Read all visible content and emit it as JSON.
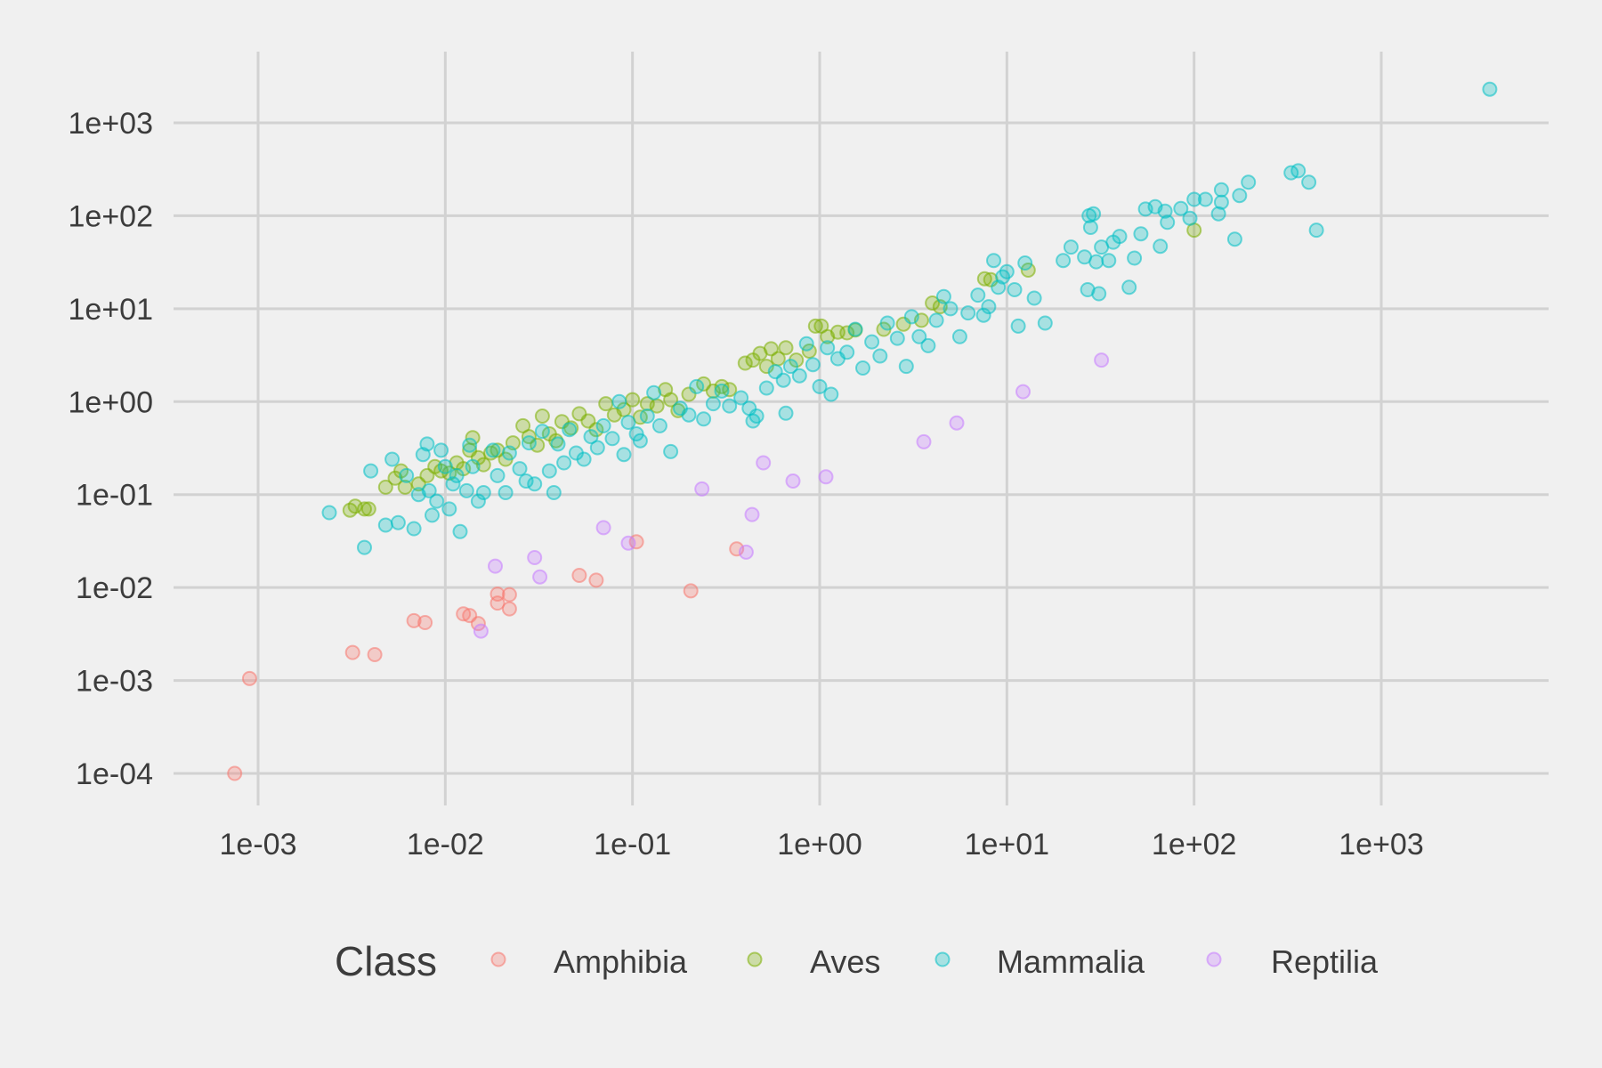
{
  "chart_data": {
    "type": "scatter",
    "title": "",
    "xlabel": "",
    "ylabel": "",
    "x_scale": "log10",
    "y_scale": "log10",
    "xlim": [
      0.0005,
      7000
    ],
    "ylim": [
      5e-05,
      5000
    ],
    "x_ticks": [
      0.001,
      0.01,
      0.1,
      1,
      10,
      100,
      1000
    ],
    "x_tick_labels": [
      "1e-03",
      "1e-02",
      "1e-01",
      "1e+00",
      "1e+01",
      "1e+02",
      "1e+03"
    ],
    "y_ticks": [
      0.0001,
      0.001,
      0.01,
      0.1,
      1,
      10,
      100,
      1000
    ],
    "y_tick_labels": [
      "1e-04",
      "1e-03",
      "1e-02",
      "1e-01",
      "1e+00",
      "1e+01",
      "1e+02",
      "1e+03"
    ],
    "grid": true,
    "point_opacity": 0.3,
    "legend": {
      "title": "Class",
      "position": "bottom",
      "entries": [
        "Amphibia",
        "Aves",
        "Mammalia",
        "Reptilia"
      ]
    },
    "series": [
      {
        "name": "Amphibia",
        "color": "#F8766D",
        "points": [
          [
            0.00075,
            0.0001
          ],
          [
            0.0009,
            0.00105
          ],
          [
            0.0032,
            0.002
          ],
          [
            0.0042,
            0.0019
          ],
          [
            0.0068,
            0.0044
          ],
          [
            0.0078,
            0.0042
          ],
          [
            0.0125,
            0.0052
          ],
          [
            0.0135,
            0.005
          ],
          [
            0.015,
            0.0041
          ],
          [
            0.019,
            0.0085
          ],
          [
            0.019,
            0.0068
          ],
          [
            0.022,
            0.0084
          ],
          [
            0.022,
            0.0059
          ],
          [
            0.052,
            0.0135
          ],
          [
            0.064,
            0.012
          ],
          [
            0.105,
            0.031
          ],
          [
            0.205,
            0.0092
          ],
          [
            0.36,
            0.026
          ]
        ]
      },
      {
        "name": "Aves",
        "color": "#7CAE00",
        "points": [
          [
            0.0031,
            0.068
          ],
          [
            0.0033,
            0.075
          ],
          [
            0.0037,
            0.07
          ],
          [
            0.0039,
            0.07
          ],
          [
            0.0048,
            0.12
          ],
          [
            0.0054,
            0.15
          ],
          [
            0.0058,
            0.18
          ],
          [
            0.0061,
            0.12
          ],
          [
            0.0072,
            0.13
          ],
          [
            0.008,
            0.16
          ],
          [
            0.0088,
            0.2
          ],
          [
            0.0095,
            0.18
          ],
          [
            0.0105,
            0.17
          ],
          [
            0.0115,
            0.22
          ],
          [
            0.0125,
            0.19
          ],
          [
            0.0135,
            0.3
          ],
          [
            0.014,
            0.41
          ],
          [
            0.015,
            0.25
          ],
          [
            0.016,
            0.21
          ],
          [
            0.0175,
            0.28
          ],
          [
            0.019,
            0.3
          ],
          [
            0.021,
            0.24
          ],
          [
            0.023,
            0.36
          ],
          [
            0.026,
            0.55
          ],
          [
            0.028,
            0.42
          ],
          [
            0.031,
            0.34
          ],
          [
            0.033,
            0.7
          ],
          [
            0.036,
            0.45
          ],
          [
            0.039,
            0.38
          ],
          [
            0.042,
            0.61
          ],
          [
            0.047,
            0.52
          ],
          [
            0.052,
            0.74
          ],
          [
            0.058,
            0.62
          ],
          [
            0.064,
            0.5
          ],
          [
            0.072,
            0.95
          ],
          [
            0.08,
            0.72
          ],
          [
            0.09,
            0.82
          ],
          [
            0.1,
            1.05
          ],
          [
            0.11,
            0.68
          ],
          [
            0.12,
            0.95
          ],
          [
            0.135,
            0.9
          ],
          [
            0.15,
            1.35
          ],
          [
            0.16,
            1.05
          ],
          [
            0.175,
            0.8
          ],
          [
            0.2,
            1.2
          ],
          [
            0.24,
            1.55
          ],
          [
            0.27,
            1.3
          ],
          [
            0.3,
            1.45
          ],
          [
            0.33,
            1.35
          ],
          [
            0.4,
            2.6
          ],
          [
            0.44,
            2.8
          ],
          [
            0.48,
            3.3
          ],
          [
            0.52,
            2.4
          ],
          [
            0.55,
            3.7
          ],
          [
            0.6,
            2.9
          ],
          [
            0.66,
            3.8
          ],
          [
            0.75,
            2.8
          ],
          [
            0.88,
            3.5
          ],
          [
            0.95,
            6.5
          ],
          [
            1.02,
            6.5
          ],
          [
            1.1,
            5.0
          ],
          [
            1.25,
            5.6
          ],
          [
            1.4,
            5.5
          ],
          [
            1.55,
            5.9
          ],
          [
            2.2,
            6.0
          ],
          [
            2.8,
            6.8
          ],
          [
            3.5,
            7.5
          ],
          [
            4.0,
            11.5
          ],
          [
            4.4,
            10.5
          ],
          [
            7.6,
            21.0
          ],
          [
            8.2,
            20.5
          ],
          [
            13.0,
            26.0
          ],
          [
            100.0,
            70.0
          ]
        ]
      },
      {
        "name": "Mammalia",
        "color": "#00BFC4",
        "points": [
          [
            0.0024,
            0.064
          ],
          [
            0.0037,
            0.027
          ],
          [
            0.004,
            0.18
          ],
          [
            0.0048,
            0.047
          ],
          [
            0.0052,
            0.24
          ],
          [
            0.0056,
            0.05
          ],
          [
            0.0062,
            0.16
          ],
          [
            0.0068,
            0.043
          ],
          [
            0.0072,
            0.1
          ],
          [
            0.0076,
            0.27
          ],
          [
            0.008,
            0.35
          ],
          [
            0.0082,
            0.11
          ],
          [
            0.0085,
            0.06
          ],
          [
            0.009,
            0.085
          ],
          [
            0.0095,
            0.3
          ],
          [
            0.01,
            0.2
          ],
          [
            0.0105,
            0.07
          ],
          [
            0.011,
            0.13
          ],
          [
            0.0115,
            0.16
          ],
          [
            0.012,
            0.04
          ],
          [
            0.013,
            0.11
          ],
          [
            0.0135,
            0.34
          ],
          [
            0.014,
            0.2
          ],
          [
            0.015,
            0.085
          ],
          [
            0.016,
            0.105
          ],
          [
            0.018,
            0.3
          ],
          [
            0.019,
            0.16
          ],
          [
            0.021,
            0.105
          ],
          [
            0.022,
            0.28
          ],
          [
            0.025,
            0.19
          ],
          [
            0.027,
            0.14
          ],
          [
            0.028,
            0.36
          ],
          [
            0.03,
            0.13
          ],
          [
            0.033,
            0.48
          ],
          [
            0.036,
            0.18
          ],
          [
            0.038,
            0.105
          ],
          [
            0.04,
            0.35
          ],
          [
            0.043,
            0.22
          ],
          [
            0.046,
            0.5
          ],
          [
            0.05,
            0.28
          ],
          [
            0.055,
            0.24
          ],
          [
            0.06,
            0.42
          ],
          [
            0.065,
            0.32
          ],
          [
            0.07,
            0.55
          ],
          [
            0.078,
            0.4
          ],
          [
            0.085,
            1.0
          ],
          [
            0.09,
            0.27
          ],
          [
            0.095,
            0.6
          ],
          [
            0.105,
            0.45
          ],
          [
            0.11,
            0.38
          ],
          [
            0.12,
            0.7
          ],
          [
            0.13,
            1.25
          ],
          [
            0.14,
            0.55
          ],
          [
            0.16,
            0.29
          ],
          [
            0.18,
            0.85
          ],
          [
            0.2,
            0.72
          ],
          [
            0.22,
            1.45
          ],
          [
            0.24,
            0.65
          ],
          [
            0.27,
            0.95
          ],
          [
            0.3,
            1.3
          ],
          [
            0.33,
            0.9
          ],
          [
            0.38,
            1.1
          ],
          [
            0.42,
            0.85
          ],
          [
            0.44,
            0.62
          ],
          [
            0.46,
            0.7
          ],
          [
            0.52,
            1.4
          ],
          [
            0.58,
            2.1
          ],
          [
            0.64,
            1.7
          ],
          [
            0.66,
            0.75
          ],
          [
            0.7,
            2.4
          ],
          [
            0.78,
            1.9
          ],
          [
            0.85,
            4.2
          ],
          [
            0.92,
            2.5
          ],
          [
            1.0,
            1.45
          ],
          [
            1.1,
            3.8
          ],
          [
            1.15,
            1.2
          ],
          [
            1.25,
            2.9
          ],
          [
            1.4,
            3.4
          ],
          [
            1.55,
            6.0
          ],
          [
            1.7,
            2.3
          ],
          [
            1.9,
            4.4
          ],
          [
            2.1,
            3.1
          ],
          [
            2.3,
            7.0
          ],
          [
            2.6,
            4.8
          ],
          [
            2.9,
            2.4
          ],
          [
            3.1,
            8.2
          ],
          [
            3.4,
            5.0
          ],
          [
            3.8,
            4.0
          ],
          [
            4.2,
            7.5
          ],
          [
            4.6,
            13.5
          ],
          [
            5.0,
            10.0
          ],
          [
            5.6,
            5.0
          ],
          [
            6.2,
            9.0
          ],
          [
            7.0,
            14.0
          ],
          [
            7.5,
            8.5
          ],
          [
            8.0,
            10.5
          ],
          [
            8.5,
            33.0
          ],
          [
            9.0,
            17.0
          ],
          [
            9.5,
            22.0
          ],
          [
            10.0,
            25.0
          ],
          [
            11.0,
            16.0
          ],
          [
            11.5,
            6.5
          ],
          [
            12.5,
            31.0
          ],
          [
            14.0,
            13.0
          ],
          [
            16.0,
            7.0
          ],
          [
            20.0,
            33.0
          ],
          [
            22.0,
            46.0
          ],
          [
            26.0,
            36.0
          ],
          [
            27.0,
            16.0
          ],
          [
            27.5,
            100.0
          ],
          [
            28.0,
            75.0
          ],
          [
            29.0,
            105.0
          ],
          [
            30.0,
            32.0
          ],
          [
            31.0,
            14.5
          ],
          [
            32.0,
            46.0
          ],
          [
            35.0,
            33.0
          ],
          [
            37.0,
            52.0
          ],
          [
            40.0,
            60.0
          ],
          [
            45.0,
            17.0
          ],
          [
            48.0,
            35.0
          ],
          [
            52.0,
            64.0
          ],
          [
            55.0,
            118.0
          ],
          [
            62.0,
            125.0
          ],
          [
            66.0,
            47.0
          ],
          [
            70.0,
            112.0
          ],
          [
            72.0,
            85.0
          ],
          [
            85.0,
            120.0
          ],
          [
            95.0,
            94.0
          ],
          [
            100.0,
            150.0
          ],
          [
            115.0,
            150.0
          ],
          [
            135.0,
            105.0
          ],
          [
            140.0,
            190.0
          ],
          [
            140.0,
            140.0
          ],
          [
            165.0,
            56.0
          ],
          [
            175.0,
            165.0
          ],
          [
            195.0,
            230.0
          ],
          [
            330.0,
            290.0
          ],
          [
            360.0,
            305.0
          ],
          [
            410.0,
            230.0
          ],
          [
            450.0,
            70.0
          ],
          [
            3800.0,
            2300.0
          ]
        ]
      },
      {
        "name": "Reptilia",
        "color": "#C77CFF",
        "points": [
          [
            0.0155,
            0.0034
          ],
          [
            0.0185,
            0.017
          ],
          [
            0.03,
            0.021
          ],
          [
            0.032,
            0.013
          ],
          [
            0.07,
            0.044
          ],
          [
            0.095,
            0.03
          ],
          [
            0.235,
            0.115
          ],
          [
            0.405,
            0.024
          ],
          [
            0.435,
            0.061
          ],
          [
            0.5,
            0.22
          ],
          [
            0.72,
            0.14
          ],
          [
            1.08,
            0.155
          ],
          [
            3.6,
            0.37
          ],
          [
            5.4,
            0.59
          ],
          [
            12.2,
            1.28
          ],
          [
            32.0,
            2.8
          ]
        ]
      }
    ]
  }
}
